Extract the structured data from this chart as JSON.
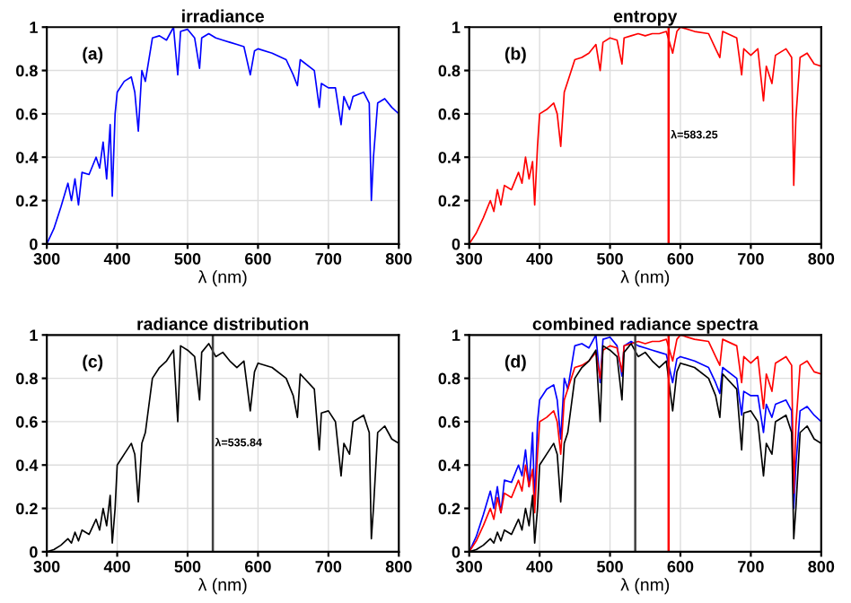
{
  "chart_data": [
    {
      "type": "line",
      "title": "irradiance",
      "xlabel": "λ (nm)",
      "annotations": [
        "(a)"
      ],
      "xlim": [
        300,
        800
      ],
      "xticks": [
        300,
        400,
        500,
        600,
        700,
        800
      ],
      "ylim": [
        0,
        1
      ],
      "yticks": [
        0,
        0.2,
        0.4,
        0.6,
        0.8,
        1
      ],
      "grid": true,
      "x": [
        300,
        310,
        320,
        330,
        335,
        340,
        345,
        350,
        360,
        370,
        375,
        380,
        385,
        390,
        393,
        397,
        400,
        410,
        420,
        425,
        430,
        435,
        440,
        450,
        460,
        470,
        480,
        486,
        490,
        500,
        510,
        517,
        520,
        530,
        540,
        550,
        560,
        570,
        580,
        589,
        595,
        600,
        620,
        640,
        650,
        656,
        660,
        680,
        687,
        690,
        700,
        710,
        718,
        722,
        730,
        735,
        750,
        758,
        761,
        764,
        770,
        780,
        790,
        800
      ],
      "series": [
        {
          "color": "#0000ff",
          "values": [
            0,
            0.07,
            0.17,
            0.28,
            0.2,
            0.3,
            0.18,
            0.33,
            0.32,
            0.4,
            0.35,
            0.47,
            0.3,
            0.55,
            0.22,
            0.6,
            0.7,
            0.75,
            0.77,
            0.7,
            0.52,
            0.8,
            0.75,
            0.95,
            0.96,
            0.94,
            1.0,
            0.78,
            0.98,
            0.99,
            0.95,
            0.81,
            0.95,
            0.97,
            0.95,
            0.94,
            0.93,
            0.92,
            0.91,
            0.78,
            0.89,
            0.9,
            0.88,
            0.85,
            0.78,
            0.73,
            0.85,
            0.8,
            0.63,
            0.74,
            0.72,
            0.72,
            0.55,
            0.68,
            0.62,
            0.68,
            0.7,
            0.65,
            0.2,
            0.4,
            0.65,
            0.67,
            0.63,
            0.6
          ]
        }
      ]
    },
    {
      "type": "line",
      "title": "entropy",
      "xlabel": "λ (nm)",
      "annotations": [
        "(b)"
      ],
      "xlim": [
        300,
        800
      ],
      "xticks": [
        300,
        400,
        500,
        600,
        700,
        800
      ],
      "ylim": [
        0,
        1
      ],
      "yticks": [
        0,
        0.2,
        0.4,
        0.6,
        0.8,
        1
      ],
      "grid": true,
      "ref_lines": [
        {
          "axis": "x",
          "value": 583.25,
          "label": "λ=583.25",
          "color": "#ff0000"
        }
      ],
      "x": [
        300,
        310,
        320,
        330,
        335,
        340,
        345,
        350,
        360,
        370,
        375,
        380,
        385,
        390,
        393,
        397,
        400,
        410,
        420,
        425,
        430,
        435,
        440,
        450,
        460,
        470,
        480,
        486,
        490,
        500,
        510,
        517,
        520,
        530,
        540,
        550,
        560,
        570,
        580,
        589,
        595,
        600,
        620,
        640,
        650,
        656,
        660,
        680,
        687,
        690,
        700,
        710,
        718,
        722,
        730,
        735,
        750,
        758,
        761,
        764,
        770,
        780,
        790,
        800
      ],
      "series": [
        {
          "color": "#ff0000",
          "values": [
            0,
            0.05,
            0.12,
            0.2,
            0.15,
            0.25,
            0.18,
            0.27,
            0.25,
            0.33,
            0.28,
            0.4,
            0.3,
            0.38,
            0.18,
            0.45,
            0.6,
            0.62,
            0.65,
            0.6,
            0.45,
            0.7,
            0.75,
            0.85,
            0.86,
            0.88,
            0.92,
            0.8,
            0.93,
            0.95,
            0.94,
            0.83,
            0.95,
            0.96,
            0.97,
            0.96,
            0.97,
            0.97,
            0.98,
            0.88,
            0.98,
            1.0,
            0.98,
            0.97,
            0.9,
            0.86,
            0.98,
            0.95,
            0.78,
            0.9,
            0.87,
            0.9,
            0.66,
            0.82,
            0.74,
            0.87,
            0.9,
            0.86,
            0.27,
            0.58,
            0.86,
            0.88,
            0.83,
            0.82
          ]
        }
      ]
    },
    {
      "type": "line",
      "title": "radiance distribution",
      "xlabel": "λ (nm)",
      "annotations": [
        "(c)"
      ],
      "xlim": [
        300,
        800
      ],
      "xticks": [
        300,
        400,
        500,
        600,
        700,
        800
      ],
      "ylim": [
        0,
        1
      ],
      "yticks": [
        0,
        0.2,
        0.4,
        0.6,
        0.8,
        1
      ],
      "grid": true,
      "ref_lines": [
        {
          "axis": "x",
          "value": 535.84,
          "label": "λ=535.84",
          "color": "#404040"
        }
      ],
      "x": [
        300,
        310,
        320,
        330,
        335,
        340,
        345,
        350,
        360,
        370,
        375,
        380,
        385,
        390,
        393,
        397,
        400,
        410,
        420,
        425,
        430,
        435,
        440,
        450,
        460,
        470,
        480,
        486,
        490,
        500,
        510,
        517,
        520,
        530,
        540,
        550,
        560,
        570,
        580,
        589,
        595,
        600,
        620,
        640,
        650,
        656,
        660,
        680,
        687,
        690,
        700,
        710,
        718,
        722,
        730,
        735,
        750,
        758,
        761,
        764,
        770,
        780,
        790,
        800
      ],
      "series": [
        {
          "color": "#000000",
          "values": [
            0,
            0.01,
            0.03,
            0.06,
            0.04,
            0.09,
            0.05,
            0.1,
            0.08,
            0.15,
            0.1,
            0.2,
            0.12,
            0.26,
            0.04,
            0.2,
            0.4,
            0.45,
            0.5,
            0.45,
            0.23,
            0.5,
            0.55,
            0.8,
            0.85,
            0.88,
            0.93,
            0.6,
            0.95,
            0.93,
            0.9,
            0.7,
            0.92,
            0.96,
            0.9,
            0.92,
            0.88,
            0.85,
            0.88,
            0.65,
            0.83,
            0.87,
            0.85,
            0.8,
            0.72,
            0.62,
            0.82,
            0.75,
            0.47,
            0.64,
            0.65,
            0.6,
            0.35,
            0.5,
            0.45,
            0.6,
            0.63,
            0.55,
            0.06,
            0.2,
            0.55,
            0.58,
            0.52,
            0.5
          ]
        }
      ]
    },
    {
      "type": "line",
      "title": "combined radiance spectra",
      "xlabel": "λ (nm)",
      "annotations": [
        "(d)"
      ],
      "xlim": [
        300,
        800
      ],
      "xticks": [
        300,
        400,
        500,
        600,
        700,
        800
      ],
      "ylim": [
        0,
        1
      ],
      "yticks": [
        0,
        0.2,
        0.4,
        0.6,
        0.8,
        1
      ],
      "grid": true,
      "ref_lines": [
        {
          "axis": "x",
          "value": 535.84,
          "color": "#404040"
        },
        {
          "axis": "x",
          "value": 583.25,
          "color": "#ff0000"
        }
      ],
      "x": [
        300,
        310,
        320,
        330,
        335,
        340,
        345,
        350,
        360,
        370,
        375,
        380,
        385,
        390,
        393,
        397,
        400,
        410,
        420,
        425,
        430,
        435,
        440,
        450,
        460,
        470,
        480,
        486,
        490,
        500,
        510,
        517,
        520,
        530,
        540,
        550,
        560,
        570,
        580,
        589,
        595,
        600,
        620,
        640,
        650,
        656,
        660,
        680,
        687,
        690,
        700,
        710,
        718,
        722,
        730,
        735,
        750,
        758,
        761,
        764,
        770,
        780,
        790,
        800
      ],
      "series": [
        {
          "color": "#0000ff",
          "values": [
            0,
            0.07,
            0.17,
            0.28,
            0.2,
            0.3,
            0.18,
            0.33,
            0.32,
            0.4,
            0.35,
            0.47,
            0.3,
            0.55,
            0.22,
            0.6,
            0.7,
            0.75,
            0.77,
            0.7,
            0.52,
            0.8,
            0.75,
            0.95,
            0.96,
            0.94,
            1.0,
            0.78,
            0.98,
            0.99,
            0.95,
            0.81,
            0.95,
            0.97,
            0.95,
            0.94,
            0.93,
            0.92,
            0.91,
            0.78,
            0.89,
            0.9,
            0.88,
            0.85,
            0.78,
            0.73,
            0.85,
            0.8,
            0.63,
            0.74,
            0.72,
            0.72,
            0.55,
            0.68,
            0.62,
            0.68,
            0.7,
            0.65,
            0.2,
            0.4,
            0.65,
            0.67,
            0.63,
            0.6
          ]
        },
        {
          "color": "#ff0000",
          "values": [
            0,
            0.05,
            0.12,
            0.2,
            0.15,
            0.25,
            0.18,
            0.27,
            0.25,
            0.33,
            0.28,
            0.4,
            0.3,
            0.38,
            0.18,
            0.45,
            0.6,
            0.62,
            0.65,
            0.6,
            0.45,
            0.7,
            0.75,
            0.85,
            0.86,
            0.88,
            0.92,
            0.8,
            0.93,
            0.95,
            0.94,
            0.83,
            0.95,
            0.96,
            0.97,
            0.96,
            0.97,
            0.97,
            0.98,
            0.88,
            0.98,
            1.0,
            0.98,
            0.97,
            0.9,
            0.86,
            0.98,
            0.95,
            0.78,
            0.9,
            0.87,
            0.9,
            0.66,
            0.82,
            0.74,
            0.87,
            0.9,
            0.86,
            0.27,
            0.58,
            0.86,
            0.88,
            0.83,
            0.82
          ]
        },
        {
          "color": "#000000",
          "values": [
            0,
            0.01,
            0.03,
            0.06,
            0.04,
            0.09,
            0.05,
            0.1,
            0.08,
            0.15,
            0.1,
            0.2,
            0.12,
            0.26,
            0.04,
            0.2,
            0.4,
            0.45,
            0.5,
            0.45,
            0.23,
            0.5,
            0.55,
            0.8,
            0.85,
            0.88,
            0.93,
            0.6,
            0.95,
            0.93,
            0.9,
            0.7,
            0.92,
            0.96,
            0.9,
            0.92,
            0.88,
            0.85,
            0.88,
            0.65,
            0.83,
            0.87,
            0.85,
            0.8,
            0.72,
            0.62,
            0.82,
            0.75,
            0.47,
            0.64,
            0.65,
            0.6,
            0.35,
            0.5,
            0.45,
            0.6,
            0.63,
            0.55,
            0.06,
            0.2,
            0.55,
            0.58,
            0.52,
            0.5
          ]
        }
      ]
    }
  ]
}
